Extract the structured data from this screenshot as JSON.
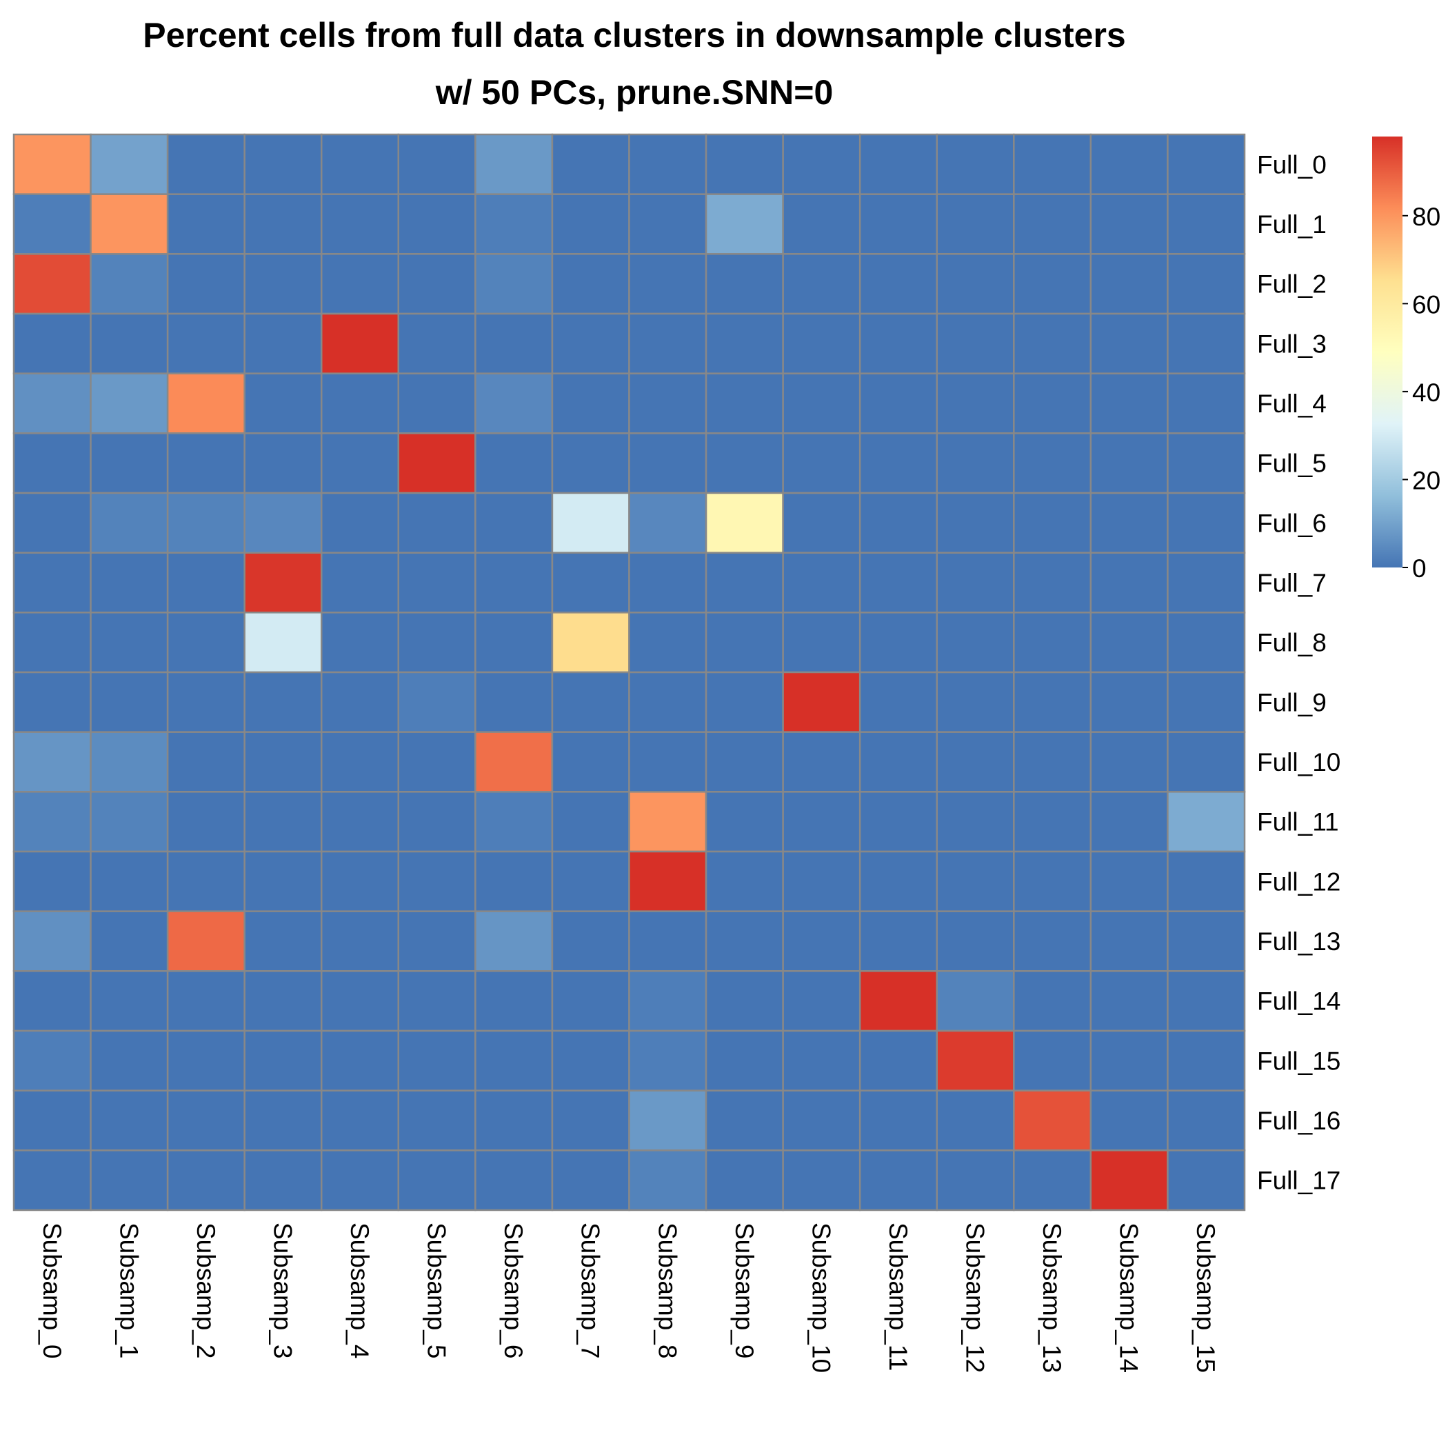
{
  "chart_data": {
    "type": "heatmap",
    "title": "Percent cells from full data clusters in downsample clusters",
    "subtitle": "w/ 50 PCs, prune.SNN=0",
    "columns": [
      "Subsamp_0",
      "Subsamp_1",
      "Subsamp_2",
      "Subsamp_3",
      "Subsamp_4",
      "Subsamp_5",
      "Subsamp_6",
      "Subsamp_7",
      "Subsamp_8",
      "Subsamp_9",
      "Subsamp_10",
      "Subsamp_11",
      "Subsamp_12",
      "Subsamp_13",
      "Subsamp_14",
      "Subsamp_15"
    ],
    "rows": [
      "Full_0",
      "Full_1",
      "Full_2",
      "Full_3",
      "Full_4",
      "Full_5",
      "Full_6",
      "Full_7",
      "Full_8",
      "Full_9",
      "Full_10",
      "Full_11",
      "Full_12",
      "Full_13",
      "Full_14",
      "Full_15",
      "Full_16",
      "Full_17"
    ],
    "values": [
      [
        80,
        10,
        0,
        0,
        0,
        0,
        8,
        0,
        0,
        0,
        0,
        0,
        0,
        0,
        0,
        0
      ],
      [
        2,
        80,
        0,
        0,
        0,
        0,
        2,
        0,
        0,
        12,
        0,
        0,
        0,
        0,
        0,
        0
      ],
      [
        93,
        3,
        0,
        0,
        0,
        0,
        3,
        0,
        0,
        0,
        0,
        0,
        0,
        0,
        0,
        0
      ],
      [
        0,
        0,
        0,
        0,
        98,
        0,
        0,
        0,
        0,
        0,
        0,
        0,
        0,
        0,
        0,
        0
      ],
      [
        6,
        8,
        82,
        0,
        0,
        0,
        4,
        0,
        0,
        0,
        0,
        0,
        0,
        0,
        0,
        0
      ],
      [
        0,
        0,
        0,
        0,
        0,
        98,
        0,
        0,
        0,
        0,
        0,
        0,
        0,
        0,
        0,
        0
      ],
      [
        0,
        3,
        3,
        4,
        0,
        0,
        0,
        30,
        4,
        53,
        0,
        0,
        0,
        0,
        0,
        0
      ],
      [
        0,
        0,
        0,
        97,
        0,
        0,
        0,
        0,
        0,
        0,
        0,
        0,
        0,
        0,
        0,
        0
      ],
      [
        0,
        0,
        0,
        30,
        0,
        0,
        0,
        66,
        0,
        0,
        0,
        0,
        0,
        0,
        0,
        0
      ],
      [
        0,
        0,
        0,
        0,
        0,
        2,
        0,
        0,
        0,
        0,
        98,
        0,
        0,
        0,
        0,
        0
      ],
      [
        7,
        5,
        0,
        0,
        0,
        0,
        87,
        0,
        0,
        0,
        0,
        0,
        0,
        0,
        0,
        0
      ],
      [
        3,
        3,
        0,
        0,
        0,
        0,
        2,
        0,
        80,
        0,
        0,
        0,
        0,
        0,
        0,
        12
      ],
      [
        0,
        0,
        0,
        0,
        0,
        0,
        0,
        0,
        98,
        0,
        0,
        0,
        0,
        0,
        0,
        0
      ],
      [
        6,
        0,
        88,
        0,
        0,
        0,
        7,
        0,
        0,
        0,
        0,
        0,
        0,
        0,
        0,
        0
      ],
      [
        0,
        0,
        0,
        0,
        0,
        0,
        0,
        0,
        2,
        0,
        0,
        98,
        3,
        0,
        0,
        0
      ],
      [
        2,
        0,
        0,
        0,
        0,
        0,
        0,
        0,
        2,
        0,
        0,
        0,
        96,
        0,
        0,
        0
      ],
      [
        0,
        0,
        0,
        0,
        0,
        0,
        0,
        0,
        8,
        0,
        0,
        0,
        0,
        92,
        0,
        0
      ],
      [
        0,
        0,
        0,
        0,
        0,
        0,
        0,
        0,
        3,
        0,
        0,
        0,
        0,
        0,
        98,
        0
      ]
    ],
    "value_range": [
      0,
      98
    ],
    "colorbar": {
      "ticks": [
        0,
        20,
        40,
        60,
        80
      ],
      "tick_labels": [
        "0",
        "20",
        "40",
        "60",
        "80"
      ],
      "colors": [
        "#4575B4",
        "#91BFDB",
        "#E0F3F8",
        "#FFFFBF",
        "#FEE090",
        "#FC8D59",
        "#D73027"
      ]
    },
    "grid_color": "#888888"
  }
}
